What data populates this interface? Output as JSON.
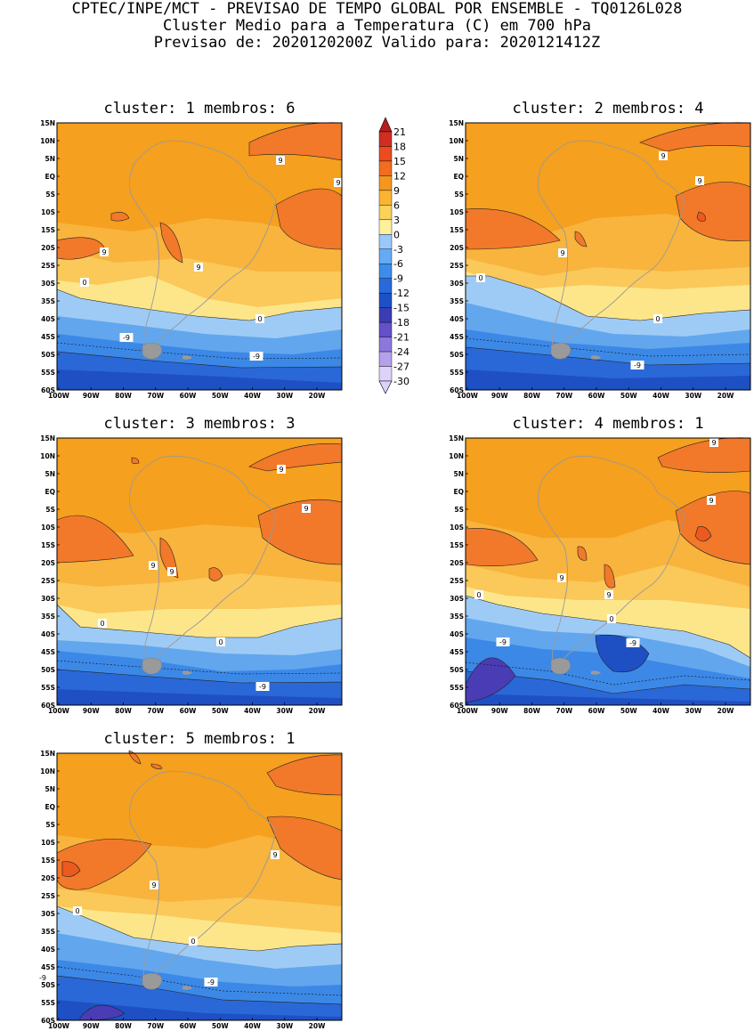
{
  "header": {
    "line1": "CPTEC/INPE/MCT - PREVISAO DE TEMPO GLOBAL POR ENSEMBLE - TQ0126L028",
    "line2": "Cluster Medio para a Temperatura (C) em 700 hPa",
    "line3": "Previsao de: 2020120200Z   Valido para: 2020121412Z"
  },
  "lat_ticks": [
    "15N",
    "10N",
    "5N",
    "EQ",
    "5S",
    "10S",
    "15S",
    "20S",
    "25S",
    "30S",
    "35S",
    "40S",
    "45S",
    "50S",
    "55S",
    "60S"
  ],
  "lon_ticks": [
    "100W",
    "90W",
    "80W",
    "70W",
    "60W",
    "50W",
    "40W",
    "30W",
    "20W"
  ],
  "colorbar": {
    "levels": [
      "21",
      "18",
      "15",
      "12",
      "9",
      "6",
      "3",
      "0",
      "-3",
      "-6",
      "-9",
      "-12",
      "-15",
      "-18",
      "-21",
      "-24",
      "-27",
      "-30"
    ],
    "colors": [
      "#b41e1e",
      "#d22d22",
      "#eb4b1e",
      "#f06e1e",
      "#f5961e",
      "#fab432",
      "#fad25a",
      "#fff09b",
      "#9bc8fa",
      "#64aaf5",
      "#3c8ceb",
      "#2869dc",
      "#1e50c8",
      "#3c3cb4",
      "#6450c8",
      "#8c78dc",
      "#b4a0eb",
      "#dcd2fa"
    ]
  },
  "palette": {
    "orange_dark": "#eb5a1e",
    "orange_red": "#f2782a",
    "orange": "#f5a01e",
    "orange_light": "#f8b43c",
    "yellow_orange": "#fbc85a",
    "yellow": "#fde68a",
    "blue_light": "#9ecbf5",
    "blue_mid": "#62a6ee",
    "blue": "#3c88e6",
    "blue_dark": "#2a68d8",
    "blue_deep": "#1e50c4",
    "purple": "#4a3cb4"
  },
  "clusters": [
    {
      "title": "cluster: 1   membros: 6",
      "labels": [
        "9",
        "9",
        "9",
        "9",
        "0",
        "0",
        "-9",
        "-9"
      ]
    },
    {
      "title": "cluster: 2   membros: 4",
      "labels": [
        "9",
        "9",
        "9",
        "0",
        "0",
        "-9"
      ]
    },
    {
      "title": "cluster: 3   membros: 3",
      "labels": [
        "9",
        "9",
        "9",
        "9",
        "0",
        "0",
        "-9"
      ]
    },
    {
      "title": "cluster: 4   membros: 1",
      "labels": [
        "9",
        "9",
        "9",
        "9",
        "0",
        "0",
        "-9",
        "-9"
      ]
    },
    {
      "title": "cluster: 5   membros: 1",
      "labels": [
        "9",
        "9",
        "0",
        "0",
        "-9",
        "-9"
      ]
    }
  ]
}
